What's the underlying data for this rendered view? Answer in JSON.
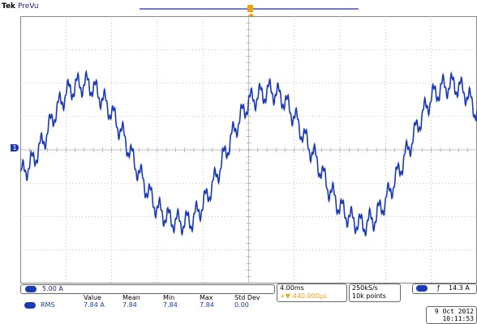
{
  "header": {
    "brand": "Tek",
    "mode": "PreVu"
  },
  "channel": {
    "marker": "1",
    "scale": "5.00 A"
  },
  "horizontal": {
    "time_div": "4.00ms",
    "trigger_delay": "+▼-440.000µs"
  },
  "acquisition": {
    "sample_rate": "250kS/s",
    "record": "10k points"
  },
  "trigger": {
    "slope": "ƒ",
    "level": "14.3 A"
  },
  "timestamp": {
    "date": "9 Oct 2012",
    "time": "10:11:53"
  },
  "measurement": {
    "headers": [
      "Value",
      "Mean",
      "Min",
      "Max",
      "Std Dev"
    ],
    "type": "RMS",
    "values": [
      "7.84 A",
      "7.84",
      "7.84",
      "7.84",
      "0.00"
    ]
  },
  "colors": {
    "trace": "#1a3bb5",
    "grid": "#b0b0b0",
    "trigger": "#e8a317"
  },
  "chart_data": {
    "type": "line",
    "title": "",
    "xlabel": "",
    "ylabel": "",
    "x_units": "ms",
    "y_units": "A",
    "xlim": [
      0,
      40
    ],
    "ylim": [
      -20,
      20
    ],
    "grid": true,
    "series": [
      {
        "x": [
          0,
          1,
          2,
          3,
          4,
          5,
          6,
          7,
          8,
          9,
          10,
          11,
          12,
          13,
          14,
          15,
          16,
          17,
          18,
          19,
          20,
          21,
          22,
          23,
          24,
          25,
          26,
          27,
          28,
          29,
          30,
          31,
          32,
          33,
          34,
          35,
          36,
          37,
          38,
          39,
          40
        ],
        "values": [
          -3.8,
          -1.9,
          1.2,
          5.4,
          8.5,
          9.7,
          9.9,
          8.1,
          5.6,
          2.2,
          -1.9,
          -5.6,
          -8.8,
          -10.3,
          -10.9,
          -10.6,
          -8.2,
          -4.7,
          -0.3,
          3.9,
          7.2,
          8.2,
          8.9,
          7.7,
          5.0,
          1.5,
          -1.8,
          -5.7,
          -8.6,
          -10.4,
          -11.3,
          -10.3,
          -7.6,
          -3.8,
          0.2,
          4.4,
          7.9,
          9.4,
          9.8,
          8.6,
          5.5
        ]
      }
    ]
  }
}
